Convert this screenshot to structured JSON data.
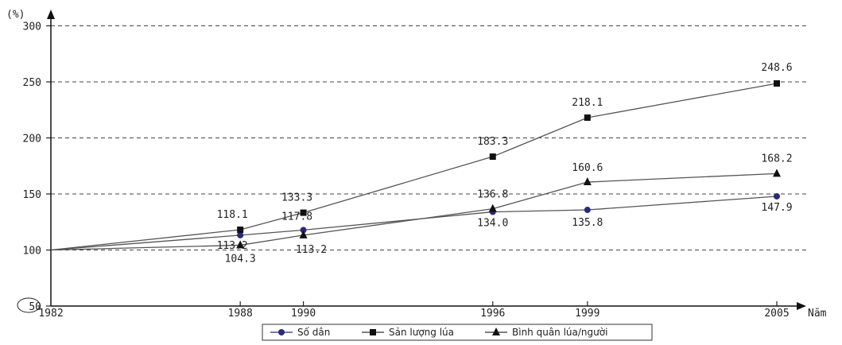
{
  "chart_data": {
    "type": "line",
    "ylabel": "(%)",
    "xlabel": "Năm",
    "ylim": [
      50,
      300
    ],
    "yticks": [
      50,
      100,
      150,
      200,
      250,
      300
    ],
    "x": [
      1982,
      1988,
      1990,
      1996,
      1999,
      2005
    ],
    "grid": "dashed horizontal",
    "legend_position": "bottom",
    "series": [
      {
        "name": "Số dân",
        "marker": "circle",
        "color": "#2a2a7a",
        "values": [
          100,
          113.2,
          117.8,
          134.0,
          135.8,
          147.9
        ],
        "labels": [
          "",
          "113.2",
          "117.8",
          "134.0",
          "135.8",
          "147.9"
        ]
      },
      {
        "name": "Sản lượng lúa",
        "marker": "square",
        "color": "#111111",
        "values": [
          100,
          118.1,
          133.3,
          183.3,
          218.1,
          248.6
        ],
        "labels": [
          "",
          "118.1",
          "133.3",
          "183.3",
          "218.1",
          "248.6"
        ]
      },
      {
        "name": "Bình quân lúa/người",
        "marker": "triangle",
        "color": "#111111",
        "values": [
          100,
          104.3,
          113.2,
          136.8,
          160.6,
          168.2
        ],
        "labels": [
          "",
          "104.3",
          "113.2",
          "136.8",
          "160.6",
          "168.2"
        ]
      }
    ]
  }
}
